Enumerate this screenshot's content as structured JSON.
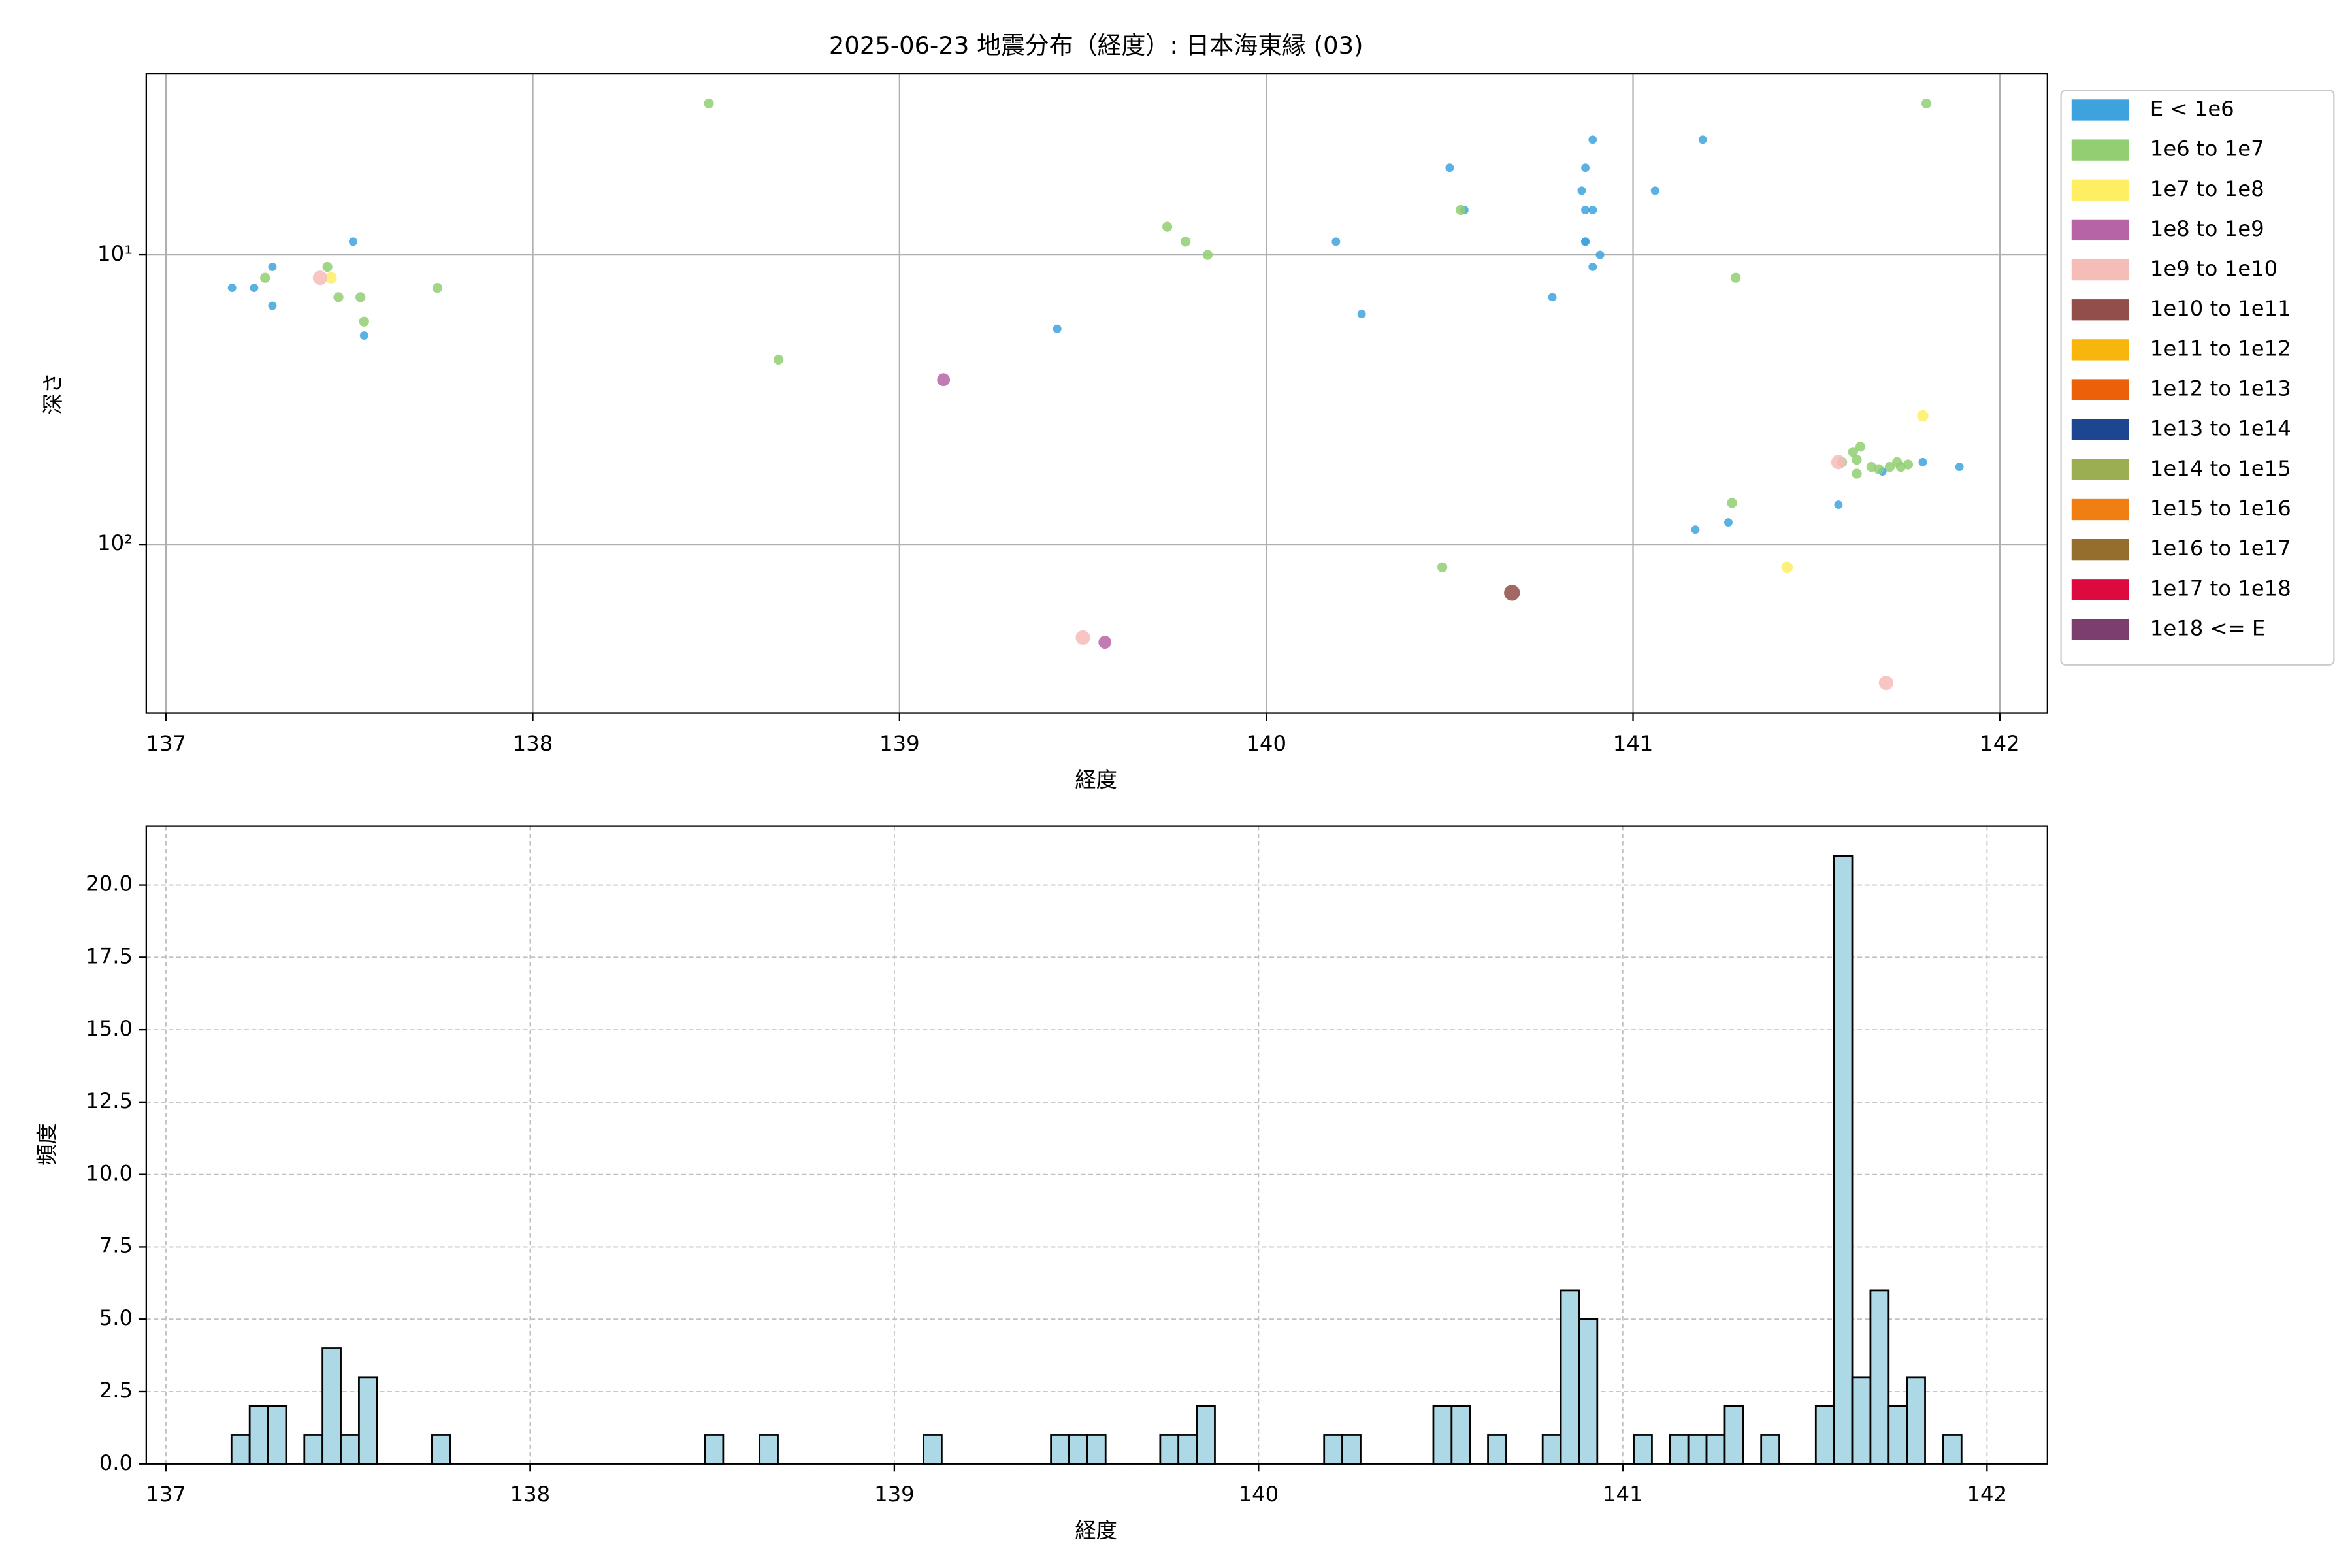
{
  "chart_data": [
    {
      "type": "scatter",
      "title": "2025-06-23 地震分布（経度）: 日本海東縁 (03)",
      "x_label": "経度",
      "y_label": "深さ",
      "xlim": [
        136.946,
        142.13
      ],
      "xticks": [
        137,
        138,
        139,
        140,
        141,
        142
      ],
      "ylim": [
        2.37,
        383
      ],
      "y_log": true,
      "y_inverted": true,
      "yticks": [
        {
          "value": 10,
          "label": "10¹"
        },
        {
          "value": 100,
          "label": "10²"
        }
      ],
      "grid": true,
      "legend": "outside right",
      "series": [
        {
          "name": "E < 1e6",
          "color": "#3ea3dc",
          "x": [
            137.18,
            137.24,
            137.29,
            137.29,
            137.51,
            137.54,
            139.43,
            140.19,
            140.26,
            140.5,
            140.54,
            140.78,
            140.86,
            140.87,
            140.87,
            140.87,
            140.87,
            140.89,
            140.89,
            140.89,
            140.91,
            141.06,
            141.19,
            141.17,
            141.26,
            141.56,
            141.68,
            141.79,
            141.89
          ],
          "y": [
            13,
            13,
            11,
            15,
            9,
            19,
            18,
            9,
            16,
            5,
            7,
            14,
            6,
            9,
            9,
            5,
            7,
            7,
            4,
            11,
            10,
            6,
            4,
            89,
            84,
            73,
            56,
            52,
            54
          ]
        },
        {
          "name": "1e6 to 1e7",
          "color": "#92cf72",
          "x": [
            138.48,
            137.27,
            137.44,
            137.47,
            137.53,
            137.54,
            137.74,
            138.67,
            139.73,
            139.78,
            139.84,
            140.53,
            141.28,
            141.8,
            141.27,
            140.48,
            141.57,
            141.6,
            141.61,
            141.62,
            141.61,
            141.65,
            141.67,
            141.7,
            141.72,
            141.73,
            141.75
          ],
          "y": [
            3,
            12,
            11,
            14,
            14,
            17,
            13,
            23,
            8,
            9,
            10,
            7,
            12,
            3,
            72,
            120,
            52,
            48,
            51,
            46,
            57,
            54,
            55,
            54,
            52,
            54,
            53
          ]
        },
        {
          "name": "1e7 to 1e8",
          "color": "#fdee64",
          "x": [
            137.45,
            141.42,
            141.79
          ],
          "y": [
            12,
            120,
            36
          ]
        },
        {
          "name": "1e8 to 1e9",
          "color": "#b764a6",
          "x": [
            139.12,
            139.56
          ],
          "y": [
            27,
            218
          ]
        },
        {
          "name": "1e9 to 1e10",
          "color": "#f6bcb8",
          "x": [
            137.42,
            139.5,
            141.69,
            141.56
          ],
          "y": [
            12,
            210,
            301,
            52
          ]
        },
        {
          "name": "1e10 to 1e11",
          "color": "#924e48",
          "x": [
            140.67
          ],
          "y": [
            147
          ]
        },
        {
          "name": "1e11 to 1e12",
          "color": "#f8b50b",
          "x": [],
          "y": []
        },
        {
          "name": "1e12 to 1e13",
          "color": "#ea6108",
          "x": [],
          "y": []
        },
        {
          "name": "1e13 to 1e14",
          "color": "#1c4790",
          "x": [],
          "y": []
        },
        {
          "name": "1e14 to 1e15",
          "color": "#9bae52",
          "x": [],
          "y": []
        },
        {
          "name": "1e15 to 1e16",
          "color": "#f07e13",
          "x": [],
          "y": []
        },
        {
          "name": "1e16 to 1e17",
          "color": "#956d2c",
          "x": [],
          "y": []
        },
        {
          "name": "1e17 to 1e18",
          "color": "#dc0a3e",
          "x": [],
          "y": []
        },
        {
          "name": "1e18 <= E",
          "color": "#7b3e6d",
          "x": [],
          "y": []
        }
      ]
    },
    {
      "type": "histogram",
      "x_label": "経度",
      "y_label": "頻度",
      "color": "#add8e6",
      "edgecolor": "#000000",
      "xlim": [
        136.946,
        142.166
      ],
      "xticks": [
        137,
        138,
        139,
        140,
        141,
        142
      ],
      "ylim": [
        0,
        22.03
      ],
      "yticks": [
        {
          "value": 0,
          "label": "0.0"
        },
        2.5,
        {
          "value": 5,
          "label": "5.0"
        },
        7.5,
        {
          "value": 10,
          "label": "10.0"
        },
        12.5,
        {
          "value": 15,
          "label": "15.0"
        },
        17.5,
        {
          "value": 20,
          "label": "20.0"
        }
      ],
      "grid": true,
      "grid_style": "dashed",
      "bins": [
        137.18,
        137.23,
        137.28,
        137.33,
        137.38,
        137.43,
        137.48,
        137.53,
        137.58,
        137.63,
        137.68,
        137.73,
        137.78,
        137.83,
        137.88,
        137.93,
        137.98,
        138.03,
        138.08,
        138.13,
        138.18,
        138.23,
        138.28,
        138.33,
        138.38,
        138.43,
        138.48,
        138.53,
        138.58,
        138.63,
        138.68,
        138.73,
        138.78,
        138.83,
        138.88,
        138.93,
        138.98,
        139.03,
        139.08,
        139.13,
        139.18,
        139.23,
        139.28,
        139.33,
        139.38,
        139.43,
        139.48,
        139.53,
        139.58,
        139.63,
        139.68,
        139.73,
        139.78,
        139.83,
        139.88,
        139.93,
        139.98,
        140.03,
        140.08,
        140.13,
        140.18,
        140.23,
        140.28,
        140.33,
        140.38,
        140.43,
        140.48,
        140.53,
        140.58,
        140.63,
        140.68,
        140.73,
        140.78,
        140.83,
        140.88,
        140.93,
        140.98,
        141.03,
        141.08,
        141.13,
        141.18,
        141.23,
        141.28,
        141.33,
        141.38,
        141.43,
        141.48,
        141.53,
        141.58,
        141.63,
        141.68,
        141.73,
        141.78,
        141.83,
        141.88,
        141.93
      ],
      "counts": [
        1,
        2,
        2,
        0,
        1,
        4,
        1,
        3,
        0,
        0,
        0,
        1,
        0,
        0,
        0,
        0,
        0,
        0,
        0,
        0,
        0,
        0,
        0,
        0,
        0,
        0,
        1,
        0,
        0,
        1,
        0,
        0,
        0,
        0,
        0,
        0,
        0,
        0,
        1,
        0,
        0,
        0,
        0,
        0,
        0,
        1,
        1,
        1,
        0,
        0,
        0,
        1,
        1,
        2,
        0,
        0,
        0,
        0,
        0,
        0,
        1,
        1,
        0,
        0,
        0,
        0,
        2,
        2,
        0,
        1,
        0,
        0,
        1,
        6,
        5,
        0,
        0,
        1,
        0,
        1,
        1,
        1,
        2,
        0,
        1,
        0,
        0,
        2,
        21,
        3,
        6,
        2,
        3,
        0,
        1
      ]
    }
  ]
}
